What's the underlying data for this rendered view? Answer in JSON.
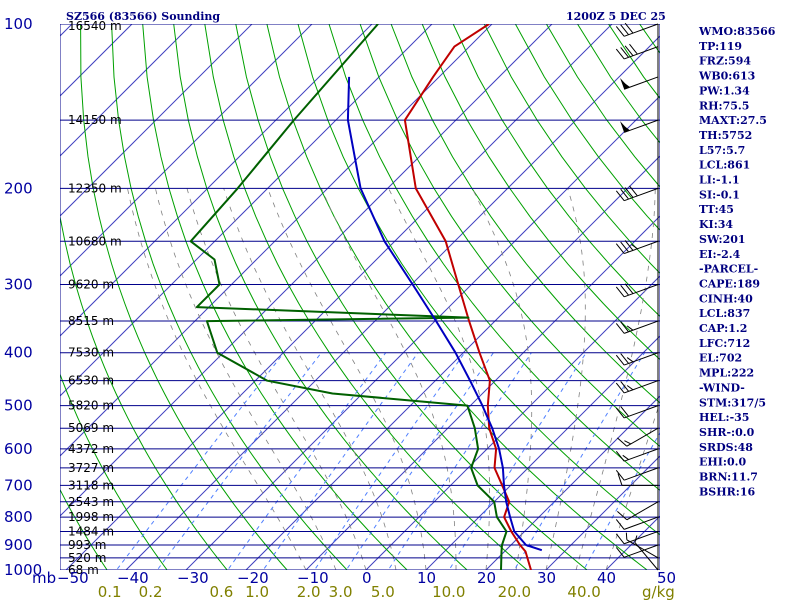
{
  "header": {
    "station": "SZ566 (83566) Sounding",
    "time": "1200Z  5 DEC 25"
  },
  "indices": [
    "WMO:83566",
    "TP:119",
    "FRZ:594",
    "WB0:613",
    "PW:1.34",
    "RH:75.5",
    "MAXT:27.5",
    "TH:5752",
    "L57:5.7",
    "LCL:861",
    "LI:-1.1",
    "SI:-0.1",
    "TT:45",
    "KI:34",
    "SW:201",
    "EI:-2.4",
    "-PARCEL-",
    "CAPE:189",
    "CINH:40",
    "LCL:837",
    "CAP:1.2",
    "LFC:712",
    "EL:702",
    "MPL:222",
    "-WIND-",
    "STM:317/5",
    "HEL:-35",
    "SHR-:0.0",
    "SRDS:48",
    "EHI:0.0",
    "BRN:11.7",
    "BSHR:16"
  ],
  "axis": {
    "unit_left": "mb",
    "unit_right": "g/kg",
    "pressure_ticks": [
      100,
      200,
      300,
      400,
      500,
      600,
      700,
      800,
      900,
      1000
    ],
    "temp_ticks": [
      -50,
      -40,
      -30,
      -20,
      -10,
      0,
      10,
      20,
      30,
      40,
      50
    ],
    "temp_tick_labels": [
      "−50",
      "−40",
      "−30",
      "−20",
      "−10",
      "0",
      "10",
      "20",
      "30",
      "40",
      "50"
    ],
    "mixing_ratio_labels": [
      "0.1",
      "0.2",
      "0.6",
      "1.0",
      "2.0",
      "3.0",
      "5.0",
      "10.0",
      "20.0",
      "40.0"
    ],
    "height_labels": [
      "16540 m",
      "14150 m",
      "12350 m",
      "10680 m",
      "9620 m",
      "8515 m",
      "7530 m",
      "6530 m",
      "5820 m",
      "5069 m",
      "4372 m",
      "3727 m",
      "3118 m",
      "2543 m",
      "1998 m",
      "1484 m",
      "993 m",
      "520 m",
      "68 m"
    ],
    "height_pressures": [
      100,
      150,
      200,
      250,
      300,
      350,
      400,
      450,
      500,
      550,
      600,
      650,
      700,
      750,
      800,
      850,
      900,
      950,
      1000
    ]
  },
  "colors": {
    "isobar": "#00008b",
    "isotherm": "#4040c0",
    "dry_adiabat": "#00a000",
    "moist_adiabat": "#808080",
    "mixing_ratio": "#5080ff",
    "temperature": "#c00000",
    "dewpoint": "#006000",
    "parcel": "#0000c0",
    "wind": "#000000",
    "text": "#000080",
    "mr_label": "#808000",
    "temp_label": "#0000a0"
  },
  "chart_data": {
    "type": "skew-t log-p sounding",
    "title": "SZ566 (83566) Sounding",
    "xlabel": "",
    "ylabel": "mb",
    "xlim": [
      -50,
      50
    ],
    "ylim": [
      1000,
      100
    ],
    "series": [
      {
        "name": "",
        "kind": "temperature",
        "pressure": [
          1000,
          925,
          900,
          850,
          800,
          750,
          700,
          650,
          600,
          550,
          500,
          450,
          400,
          350,
          300,
          250,
          200,
          150,
          125,
          110,
          100
        ],
        "values": [
          27.5,
          23.5,
          21.5,
          17.8,
          14.2,
          12.5,
          8.6,
          4.4,
          1.5,
          -3.1,
          -7.1,
          -10.9,
          -17.3,
          -24.3,
          -32.2,
          -41.5,
          -55.3,
          -68.5,
          -71.0,
          -72.5,
          -70.5
        ]
      },
      {
        "name": "",
        "kind": "dewpoint",
        "pressure": [
          1000,
          925,
          900,
          850,
          800,
          750,
          700,
          650,
          600,
          550,
          500,
          475,
          450,
          400,
          350,
          345,
          330,
          300,
          270,
          250,
          200,
          150,
          100
        ],
        "values": [
          22.5,
          19.5,
          18.5,
          17.0,
          13.0,
          10.0,
          4.5,
          0.5,
          -1.5,
          -5.5,
          -10.5,
          -35.0,
          -48.0,
          -61.0,
          -68.0,
          -25.0,
          -72.0,
          -72.0,
          -77.0,
          -84.0,
          -85.0,
          -87.0,
          -89.0
        ]
      },
      {
        "name": "",
        "kind": "parcel",
        "pressure": [
          920,
          900,
          850,
          800,
          750,
          700,
          650,
          600,
          550,
          500,
          450,
          400,
          350,
          300,
          250,
          200,
          150,
          125
        ],
        "values": [
          26.0,
          22.5,
          18.3,
          15.2,
          12.0,
          8.9,
          5.8,
          2.0,
          -2.6,
          -8.0,
          -14.2,
          -21.3,
          -29.8,
          -39.8,
          -51.7,
          -64.5,
          -78.0,
          -85.0
        ]
      }
    ],
    "wind_barbs": [
      {
        "pressure": 1000,
        "direction": 320,
        "speed": 5
      },
      {
        "pressure": 950,
        "direction": 300,
        "speed": 5
      },
      {
        "pressure": 900,
        "direction": 250,
        "speed": 10
      },
      {
        "pressure": 850,
        "direction": 250,
        "speed": 10
      },
      {
        "pressure": 800,
        "direction": 250,
        "speed": 10
      },
      {
        "pressure": 750,
        "direction": 240,
        "speed": 10
      },
      {
        "pressure": 700,
        "direction": 270,
        "speed": 10
      },
      {
        "pressure": 650,
        "direction": 250,
        "speed": 10
      },
      {
        "pressure": 600,
        "direction": 250,
        "speed": 15
      },
      {
        "pressure": 550,
        "direction": 240,
        "speed": 15
      },
      {
        "pressure": 500,
        "direction": 250,
        "speed": 20
      },
      {
        "pressure": 450,
        "direction": 250,
        "speed": 25
      },
      {
        "pressure": 400,
        "direction": 250,
        "speed": 25
      },
      {
        "pressure": 350,
        "direction": 250,
        "speed": 25
      },
      {
        "pressure": 300,
        "direction": 250,
        "speed": 30
      },
      {
        "pressure": 250,
        "direction": 250,
        "speed": 35
      },
      {
        "pressure": 200,
        "direction": 250,
        "speed": 40
      },
      {
        "pressure": 150,
        "direction": 250,
        "speed": 55
      },
      {
        "pressure": 125,
        "direction": 250,
        "speed": 55
      },
      {
        "pressure": 110,
        "direction": 250,
        "speed": 40
      },
      {
        "pressure": 100,
        "direction": 250,
        "speed": 30
      }
    ]
  }
}
